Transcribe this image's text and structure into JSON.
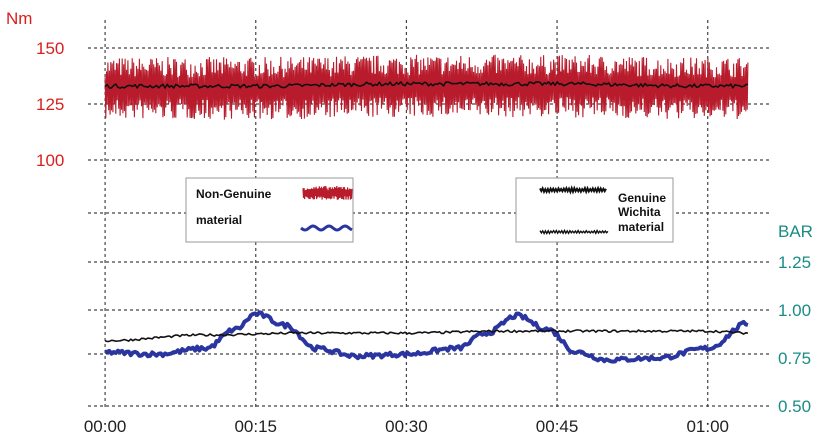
{
  "chart_data": {
    "type": "line",
    "x": [
      "00:00",
      "00:15",
      "00:30",
      "00:45",
      "01:00"
    ],
    "x_minutes": [
      0,
      15,
      30,
      45,
      60
    ],
    "xlim_minutes": [
      -2,
      66
    ],
    "left_axis": {
      "unit_label": "Nm",
      "ticks": [
        150,
        125,
        100
      ],
      "color": "#d8201f"
    },
    "right_axis": {
      "unit_label": "BAR",
      "ticks": [
        "1.25",
        "1.00",
        "0.75",
        "0.50"
      ],
      "tick_values": [
        1.25,
        1.0,
        0.75,
        0.5
      ],
      "color": "#1a8c85"
    },
    "legend": {
      "left": {
        "line1": "Non-Genuine",
        "line2": "material"
      },
      "right": {
        "line1": "Genuine",
        "line2": "Wichita",
        "line3": "material"
      }
    },
    "series": [
      {
        "name": "Non-Genuine material",
        "axis": "left",
        "color": "#b81c2c",
        "style": "noisy band",
        "center": 132,
        "band_halfwidth": 14,
        "x": [
          0,
          15,
          30,
          45,
          60,
          64
        ],
        "y": [
          132,
          132,
          133,
          133,
          132,
          132
        ]
      },
      {
        "name": "Genuine Wichita material",
        "axis": "left",
        "color": "#111111",
        "x": [
          0,
          15,
          30,
          45,
          60,
          64
        ],
        "y": [
          133,
          133,
          134,
          134,
          133,
          133
        ]
      },
      {
        "name": "Non-Genuine material",
        "axis": "right",
        "color": "#2a35a0",
        "x": [
          0,
          5,
          10,
          13,
          15,
          18,
          21,
          25,
          30,
          35,
          38,
          41,
          44,
          47,
          50,
          55,
          60,
          64
        ],
        "y": [
          0.78,
          0.77,
          0.8,
          0.9,
          0.98,
          0.92,
          0.8,
          0.76,
          0.77,
          0.8,
          0.88,
          0.97,
          0.9,
          0.78,
          0.74,
          0.75,
          0.8,
          0.93
        ]
      },
      {
        "name": "Genuine Wichita material",
        "axis": "right",
        "color": "#111111",
        "x": [
          0,
          10,
          20,
          30,
          40,
          50,
          60,
          64
        ],
        "y": [
          0.84,
          0.87,
          0.88,
          0.88,
          0.89,
          0.89,
          0.89,
          0.88
        ]
      }
    ],
    "grid": true
  }
}
